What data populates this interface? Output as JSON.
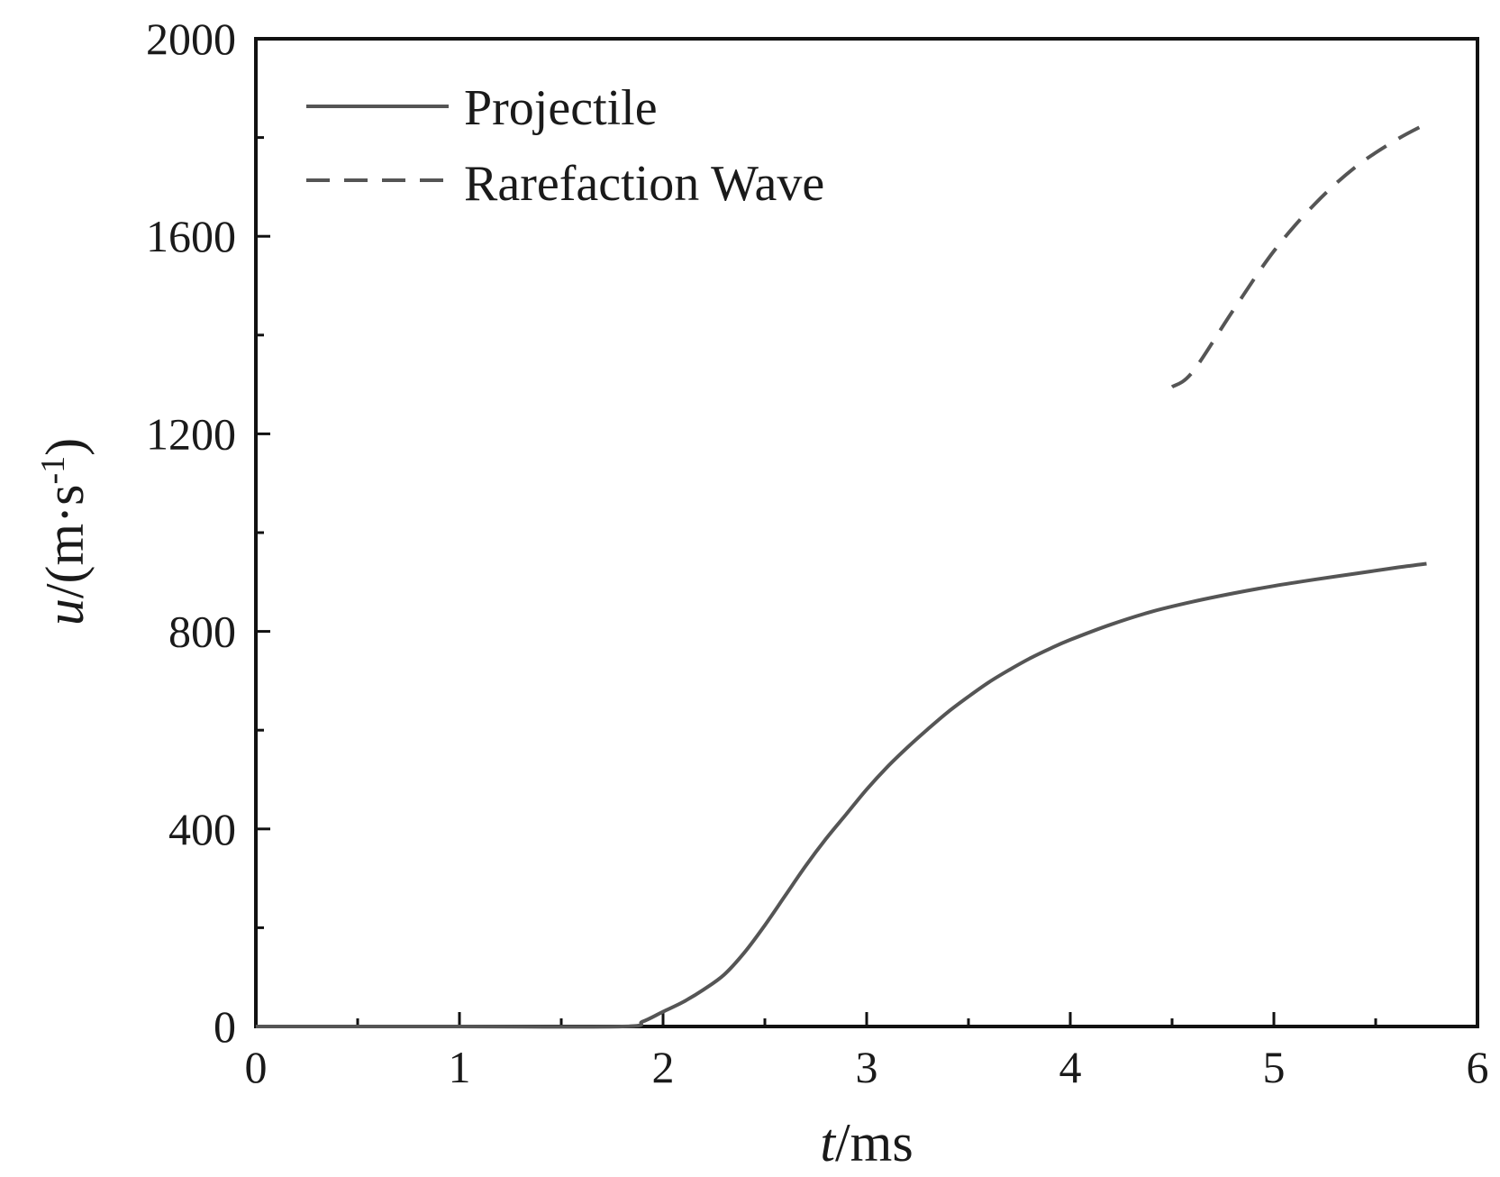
{
  "chart_data": {
    "type": "line",
    "title": "",
    "xlabel": {
      "var": "t",
      "unit": "/ms"
    },
    "ylabel": {
      "var": "u",
      "unit": "/(m·s",
      "sup": "-1",
      "close": ")"
    },
    "xlim": [
      0,
      6
    ],
    "ylim": [
      0,
      2000
    ],
    "xticks": [
      0,
      1,
      2,
      3,
      4,
      5,
      6
    ],
    "xtick_labels": [
      "0",
      "1",
      "2",
      "3",
      "4",
      "5",
      "6"
    ],
    "xminor": [
      0.5,
      1.5,
      2.5,
      3.5,
      4.5,
      5.5
    ],
    "yticks": [
      0,
      400,
      800,
      1200,
      1600,
      2000
    ],
    "ytick_labels": [
      "0",
      "400",
      "800",
      "1200",
      "1600",
      "2000"
    ],
    "yminor": [
      200,
      600,
      1000,
      1400,
      1800
    ],
    "grid": false,
    "legend_position": "top-left",
    "series": [
      {
        "name": "Projectile",
        "style": "solid",
        "color": "#555555",
        "x": [
          0,
          1.0,
          1.8,
          1.9,
          2.0,
          2.1,
          2.2,
          2.3,
          2.4,
          2.5,
          2.6,
          2.7,
          2.8,
          2.9,
          3.0,
          3.1,
          3.2,
          3.3,
          3.4,
          3.5,
          3.6,
          3.7,
          3.8,
          3.9,
          4.0,
          4.2,
          4.4,
          4.6,
          4.8,
          5.0,
          5.2,
          5.4,
          5.6,
          5.75
        ],
        "y": [
          0,
          0,
          0,
          10,
          30,
          50,
          75,
          105,
          150,
          205,
          265,
          325,
          380,
          430,
          480,
          525,
          565,
          602,
          637,
          668,
          697,
          722,
          745,
          765,
          783,
          814,
          840,
          860,
          877,
          892,
          905,
          917,
          929,
          937
        ]
      },
      {
        "name": "Rarefaction Wave",
        "style": "dashed",
        "color": "#555555",
        "x": [
          4.5,
          4.6,
          4.8,
          5.0,
          5.2,
          5.4,
          5.6,
          5.75
        ],
        "y": [
          1295,
          1325,
          1450,
          1570,
          1665,
          1740,
          1795,
          1828
        ]
      }
    ]
  }
}
